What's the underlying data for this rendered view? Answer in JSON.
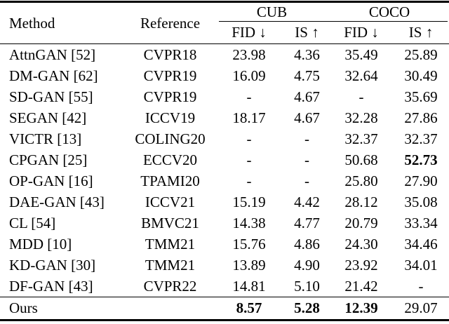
{
  "page": {
    "background": "#ffffff",
    "text_color": "#000000",
    "rule_color": "#000000"
  },
  "table": {
    "headers": {
      "method": "Method",
      "reference": "Reference",
      "groups": [
        {
          "label": "CUB"
        },
        {
          "label": "COCO"
        }
      ],
      "metrics": [
        "FID ↓",
        "IS ↑",
        "FID ↓",
        "IS ↑"
      ]
    },
    "rows": [
      {
        "method": "AttnGAN [52]",
        "reference": "CVPR18",
        "values": [
          "23.98",
          "4.36",
          "35.49",
          "25.89"
        ],
        "bold": [
          false,
          false,
          false,
          false
        ]
      },
      {
        "method": "DM-GAN [62]",
        "reference": "CVPR19",
        "values": [
          "16.09",
          "4.75",
          "32.64",
          "30.49"
        ],
        "bold": [
          false,
          false,
          false,
          false
        ]
      },
      {
        "method": "SD-GAN [55]",
        "reference": "CVPR19",
        "values": [
          "-",
          "4.67",
          "-",
          "35.69"
        ],
        "bold": [
          false,
          false,
          false,
          false
        ]
      },
      {
        "method": "SEGAN [42]",
        "reference": "ICCV19",
        "values": [
          "18.17",
          "4.67",
          "32.28",
          "27.86"
        ],
        "bold": [
          false,
          false,
          false,
          false
        ]
      },
      {
        "method": "VICTR [13]",
        "reference": "COLING20",
        "values": [
          "-",
          "-",
          "32.37",
          "32.37"
        ],
        "bold": [
          false,
          false,
          false,
          false
        ]
      },
      {
        "method": "CPGAN [25]",
        "reference": "ECCV20",
        "values": [
          "-",
          "-",
          "50.68",
          "52.73"
        ],
        "bold": [
          false,
          false,
          false,
          true
        ]
      },
      {
        "method": "OP-GAN [16]",
        "reference": "TPAMI20",
        "values": [
          "-",
          "-",
          "25.80",
          "27.90"
        ],
        "bold": [
          false,
          false,
          false,
          false
        ]
      },
      {
        "method": "DAE-GAN [43]",
        "reference": "ICCV21",
        "values": [
          "15.19",
          "4.42",
          "28.12",
          "35.08"
        ],
        "bold": [
          false,
          false,
          false,
          false
        ]
      },
      {
        "method": "CL [54]",
        "reference": "BMVC21",
        "values": [
          "14.38",
          "4.77",
          "20.79",
          "33.34"
        ],
        "bold": [
          false,
          false,
          false,
          false
        ]
      },
      {
        "method": "MDD [10]",
        "reference": "TMM21",
        "values": [
          "15.76",
          "4.86",
          "24.30",
          "34.46"
        ],
        "bold": [
          false,
          false,
          false,
          false
        ]
      },
      {
        "method": "KD-GAN [30]",
        "reference": "TMM21",
        "values": [
          "13.89",
          "4.90",
          "23.92",
          "34.01"
        ],
        "bold": [
          false,
          false,
          false,
          false
        ]
      },
      {
        "method": "DF-GAN [43]",
        "reference": "CVPR22",
        "values": [
          "14.81",
          "5.10",
          "21.42",
          "-"
        ],
        "bold": [
          false,
          false,
          false,
          false
        ]
      }
    ],
    "ours": {
      "method": "Ours",
      "reference": "",
      "values": [
        "8.57",
        "5.28",
        "12.39",
        "29.07"
      ],
      "bold": [
        true,
        true,
        true,
        false
      ]
    }
  },
  "chart_data": {
    "type": "table",
    "columns": [
      "Method",
      "Reference",
      "CUB FID ↓",
      "CUB IS ↑",
      "COCO FID ↓",
      "COCO IS ↑"
    ],
    "rows": [
      [
        "AttnGAN [52]",
        "CVPR18",
        "23.98",
        "4.36",
        "35.49",
        "25.89"
      ],
      [
        "DM-GAN [62]",
        "CVPR19",
        "16.09",
        "4.75",
        "32.64",
        "30.49"
      ],
      [
        "SD-GAN [55]",
        "CVPR19",
        "-",
        "4.67",
        "-",
        "35.69"
      ],
      [
        "SEGAN [42]",
        "ICCV19",
        "18.17",
        "4.67",
        "32.28",
        "27.86"
      ],
      [
        "VICTR [13]",
        "COLING20",
        "-",
        "-",
        "32.37",
        "32.37"
      ],
      [
        "CPGAN [25]",
        "ECCV20",
        "-",
        "-",
        "50.68",
        "52.73"
      ],
      [
        "OP-GAN [16]",
        "TPAMI20",
        "-",
        "-",
        "25.80",
        "27.90"
      ],
      [
        "DAE-GAN [43]",
        "ICCV21",
        "15.19",
        "4.42",
        "28.12",
        "35.08"
      ],
      [
        "CL [54]",
        "BMVC21",
        "14.38",
        "4.77",
        "20.79",
        "33.34"
      ],
      [
        "MDD [10]",
        "TMM21",
        "15.76",
        "4.86",
        "24.30",
        "34.46"
      ],
      [
        "KD-GAN [30]",
        "TMM21",
        "13.89",
        "4.90",
        "23.92",
        "34.01"
      ],
      [
        "DF-GAN [43]",
        "CVPR22",
        "14.81",
        "5.10",
        "21.42",
        "-"
      ],
      [
        "Ours",
        "",
        "8.57",
        "5.28",
        "12.39",
        "29.07"
      ]
    ],
    "bold_cells": [
      [
        "CPGAN [25]",
        "COCO IS ↑"
      ],
      [
        "Ours",
        "CUB FID ↓"
      ],
      [
        "Ours",
        "CUB IS ↑"
      ],
      [
        "Ours",
        "COCO FID ↓"
      ]
    ]
  }
}
